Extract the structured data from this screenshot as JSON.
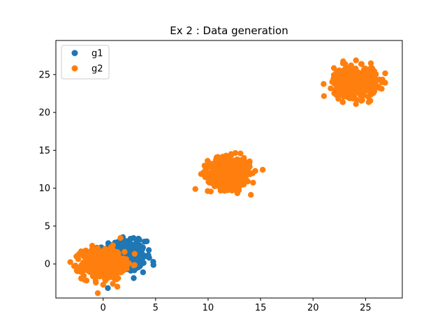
{
  "chart_data": {
    "type": "scatter",
    "title": "Ex 2 : Data generation",
    "xlabel": "",
    "ylabel": "",
    "xlim": [
      -4.5,
      28.5
    ],
    "ylim": [
      -4.5,
      29.5
    ],
    "xticks": [
      0,
      5,
      10,
      15,
      20,
      25
    ],
    "yticks": [
      0,
      5,
      10,
      15,
      20,
      25
    ],
    "grid": false,
    "legend_position": "top-left",
    "series": [
      {
        "name": "g1",
        "color": "#1f77b4",
        "clusters": [
          {
            "center": [
              2.0,
              1.0
            ],
            "spread": [
              1.0,
              1.0
            ],
            "count": 500
          }
        ]
      },
      {
        "name": "g2",
        "color": "#ff7f0e",
        "clusters": [
          {
            "center": [
              0.0,
              0.0
            ],
            "spread": [
              1.0,
              1.0
            ],
            "count": 500
          },
          {
            "center": [
              12.0,
              12.0
            ],
            "spread": [
              1.0,
              1.0
            ],
            "count": 500
          },
          {
            "center": [
              24.0,
              24.0
            ],
            "spread": [
              1.0,
              1.0
            ],
            "count": 500
          }
        ]
      }
    ]
  }
}
